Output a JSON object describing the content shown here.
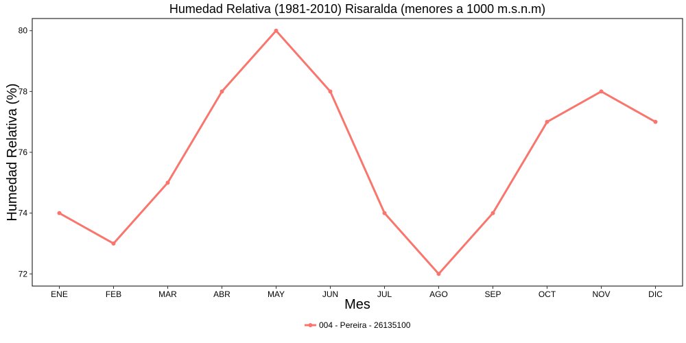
{
  "chart_data": {
    "type": "line",
    "title": "Humedad Relativa (1981-2010) Risaralda (menores a 1000 m.s.n.m)",
    "xlabel": "Mes",
    "ylabel": "Humedad Relativa (%)",
    "categories": [
      "ENE",
      "FEB",
      "MAR",
      "ABR",
      "MAY",
      "JUN",
      "JUL",
      "AGO",
      "SEP",
      "OCT",
      "NOV",
      "DIC"
    ],
    "series": [
      {
        "name": "004 - Pereira - 26135100",
        "values": [
          74,
          73,
          75,
          78,
          80,
          78,
          74,
          72,
          74,
          77,
          78,
          77
        ]
      }
    ],
    "yticks": [
      72,
      74,
      76,
      78,
      80
    ],
    "ylim": [
      71.6,
      80.4
    ],
    "grid": false,
    "legend_position": "bottom",
    "colors": {
      "series": "#F8766D",
      "axis": "#000000",
      "background": "#ffffff"
    }
  }
}
